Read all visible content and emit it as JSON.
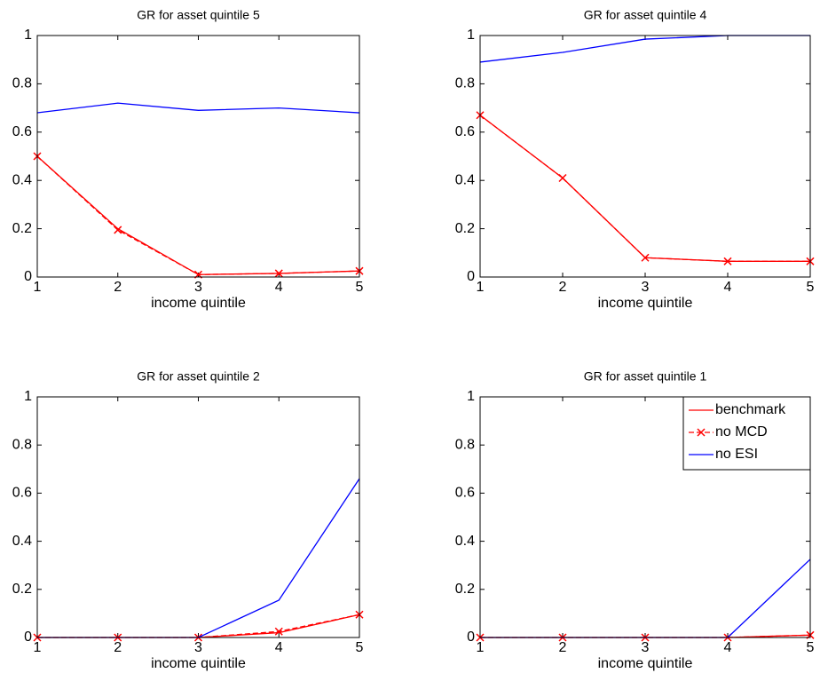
{
  "chart_data": [
    {
      "type": "line",
      "title": "GR for asset quintile 5",
      "xlabel": "income quintile",
      "x": [
        1,
        2,
        3,
        4,
        5
      ],
      "xlim": [
        1,
        5
      ],
      "xticks": [
        1,
        2,
        3,
        4,
        5
      ],
      "ylim": [
        0,
        1
      ],
      "yticks": [
        0,
        0.2,
        0.4,
        0.6,
        0.8,
        1
      ],
      "series": [
        {
          "color": "#ff0000",
          "linestyle": "solid",
          "values": [
            0.5,
            0.2,
            0.01,
            0.015,
            0.025
          ]
        },
        {
          "color": "#ff0000",
          "linestyle": "dashed",
          "marker": "x",
          "values": [
            0.5,
            0.195,
            0.01,
            0.015,
            0.025
          ]
        },
        {
          "color": "#0000ff",
          "linestyle": "solid",
          "values": [
            0.68,
            0.72,
            0.69,
            0.7,
            0.68
          ]
        }
      ]
    },
    {
      "type": "line",
      "title": "GR for asset quintile 4",
      "xlabel": "income quintile",
      "x": [
        1,
        2,
        3,
        4,
        5
      ],
      "xlim": [
        1,
        5
      ],
      "xticks": [
        1,
        2,
        3,
        4,
        5
      ],
      "ylim": [
        0,
        1
      ],
      "yticks": [
        0,
        0.2,
        0.4,
        0.6,
        0.8,
        1
      ],
      "series": [
        {
          "color": "#ff0000",
          "linestyle": "solid",
          "values": [
            0.67,
            0.41,
            0.08,
            0.065,
            0.065
          ]
        },
        {
          "color": "#ff0000",
          "linestyle": "dashed",
          "marker": "x",
          "values": [
            0.67,
            0.41,
            0.08,
            0.065,
            0.065
          ]
        },
        {
          "color": "#0000ff",
          "linestyle": "solid",
          "values": [
            0.89,
            0.93,
            0.985,
            1.0,
            1.0
          ]
        }
      ]
    },
    {
      "type": "line",
      "title": "GR for asset quintile 2",
      "xlabel": "income quintile",
      "x": [
        1,
        2,
        3,
        4,
        5
      ],
      "xlim": [
        1,
        5
      ],
      "xticks": [
        1,
        2,
        3,
        4,
        5
      ],
      "ylim": [
        0,
        1
      ],
      "yticks": [
        0,
        0.2,
        0.4,
        0.6,
        0.8,
        1
      ],
      "series": [
        {
          "color": "#ff0000",
          "linestyle": "solid",
          "values": [
            0,
            0,
            0,
            0.02,
            0.095
          ]
        },
        {
          "color": "#ff0000",
          "linestyle": "dashed",
          "marker": "x",
          "values": [
            0,
            0,
            0,
            0.025,
            0.095
          ]
        },
        {
          "color": "#0000ff",
          "linestyle": "solid",
          "values": [
            0,
            0,
            0,
            0.155,
            0.66
          ]
        }
      ]
    },
    {
      "type": "line",
      "title": "GR for asset quintile 1",
      "xlabel": "income quintile",
      "x": [
        1,
        2,
        3,
        4,
        5
      ],
      "xlim": [
        1,
        5
      ],
      "xticks": [
        1,
        2,
        3,
        4,
        5
      ],
      "ylim": [
        0,
        1
      ],
      "yticks": [
        0,
        0.2,
        0.4,
        0.6,
        0.8,
        1
      ],
      "legend": "northeast",
      "series": [
        {
          "name": "benchmark",
          "color": "#ff0000",
          "linestyle": "solid",
          "values": [
            0,
            0,
            0,
            0,
            0.01
          ]
        },
        {
          "name": "no MCD",
          "color": "#ff0000",
          "linestyle": "dashed",
          "marker": "x",
          "values": [
            0,
            0,
            0,
            0,
            0.01
          ]
        },
        {
          "name": "no ESI",
          "color": "#0000ff",
          "linestyle": "solid",
          "values": [
            0,
            0,
            0,
            0,
            0.325
          ]
        }
      ]
    }
  ]
}
